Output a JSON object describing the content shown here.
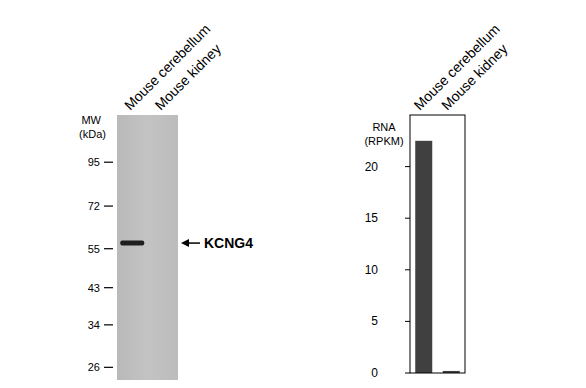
{
  "western_blot": {
    "lanes": [
      "Mouse cerebellum",
      "Mouse kidney"
    ],
    "mw_label": [
      "MW",
      "(kDa)"
    ],
    "mw_markers": [
      95,
      72,
      55,
      43,
      34,
      26
    ],
    "mw_lim": [
      24,
      128
    ],
    "log": true,
    "band": {
      "label": "KCNG4",
      "lane": 0,
      "mw": 57
    }
  },
  "chart_data": {
    "type": "bar",
    "y_label": [
      "RNA",
      "(RPKM)"
    ],
    "categories": [
      "Mouse cerebellum",
      "Mouse kidney"
    ],
    "values": [
      22.5,
      0.2
    ],
    "color": "#404040",
    "ylim": [
      0,
      25
    ],
    "yticks": [
      0,
      5,
      10,
      15,
      20
    ],
    "grid": false
  }
}
